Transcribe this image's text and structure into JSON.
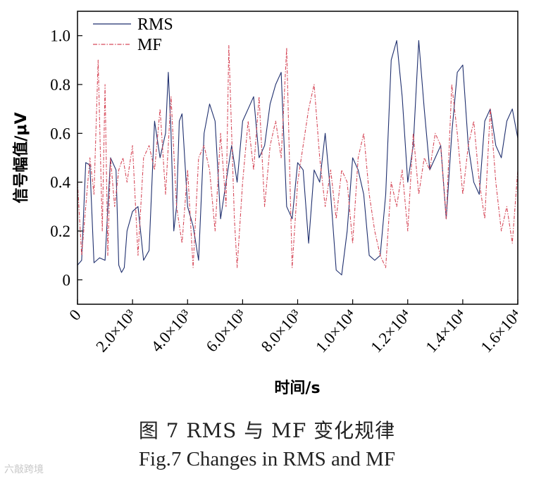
{
  "chart_data": {
    "type": "line",
    "title": "",
    "xlabel": "时间/s",
    "ylabel": "信号幅值/μV",
    "xlim": [
      0,
      16000
    ],
    "ylim": [
      -0.1,
      1.1
    ],
    "x_ticks": [
      0,
      2000,
      4000,
      6000,
      8000,
      10000,
      12000,
      14000,
      16000
    ],
    "x_tick_labels": [
      "0",
      "2.0×10³",
      "4.0×10³",
      "6.0×10³",
      "8.0×10³",
      "1.0×10⁴",
      "1.2×10⁴",
      "1.4×10⁴",
      "1.6×10⁴"
    ],
    "y_ticks": [
      0,
      0.2,
      0.4,
      0.6,
      0.8,
      1.0
    ],
    "y_tick_labels": [
      "0",
      "0.2",
      "0.4",
      "0.6",
      "0.8",
      "1.0"
    ],
    "legend_position": "top-left",
    "series": [
      {
        "name": "RMS",
        "color": "#1f2f6e",
        "style": "solid",
        "x": [
          0,
          150,
          300,
          450,
          600,
          800,
          1000,
          1200,
          1400,
          1500,
          1600,
          1700,
          1800,
          2000,
          2200,
          2400,
          2600,
          2800,
          3000,
          3200,
          3300,
          3400,
          3500,
          3600,
          3700,
          3800,
          4000,
          4200,
          4400,
          4600,
          4800,
          5000,
          5200,
          5400,
          5600,
          5800,
          6000,
          6200,
          6400,
          6600,
          6800,
          7000,
          7200,
          7400,
          7600,
          7800,
          8000,
          8200,
          8400,
          8600,
          8800,
          9000,
          9200,
          9400,
          9600,
          9800,
          10000,
          10200,
          10400,
          10600,
          10800,
          11000,
          11200,
          11400,
          11600,
          11800,
          12000,
          12200,
          12400,
          12600,
          12800,
          13000,
          13200,
          13400,
          13600,
          13800,
          14000,
          14200,
          14400,
          14600,
          14800,
          15000,
          15200,
          15400,
          15600,
          15800,
          16000
        ],
        "y": [
          0.06,
          0.08,
          0.48,
          0.47,
          0.07,
          0.09,
          0.08,
          0.5,
          0.45,
          0.06,
          0.03,
          0.05,
          0.2,
          0.28,
          0.3,
          0.08,
          0.12,
          0.65,
          0.5,
          0.6,
          0.85,
          0.6,
          0.2,
          0.3,
          0.65,
          0.68,
          0.3,
          0.22,
          0.08,
          0.6,
          0.72,
          0.65,
          0.25,
          0.4,
          0.55,
          0.4,
          0.65,
          0.7,
          0.75,
          0.5,
          0.55,
          0.72,
          0.8,
          0.85,
          0.3,
          0.25,
          0.48,
          0.45,
          0.15,
          0.45,
          0.4,
          0.6,
          0.35,
          0.04,
          0.02,
          0.2,
          0.5,
          0.45,
          0.35,
          0.1,
          0.08,
          0.1,
          0.35,
          0.9,
          0.98,
          0.75,
          0.4,
          0.55,
          0.98,
          0.7,
          0.45,
          0.5,
          0.55,
          0.25,
          0.6,
          0.85,
          0.88,
          0.55,
          0.4,
          0.35,
          0.65,
          0.7,
          0.55,
          0.5,
          0.65,
          0.7,
          0.58
        ]
      },
      {
        "name": "MF",
        "color": "#d64a5a",
        "style": "dashdot",
        "x": [
          0,
          150,
          300,
          450,
          600,
          750,
          900,
          1000,
          1100,
          1200,
          1350,
          1500,
          1650,
          1800,
          2000,
          2200,
          2400,
          2600,
          2800,
          3000,
          3200,
          3400,
          3600,
          3800,
          4000,
          4200,
          4400,
          4600,
          4800,
          5000,
          5200,
          5400,
          5500,
          5600,
          5700,
          5800,
          6000,
          6200,
          6400,
          6600,
          6800,
          7000,
          7200,
          7400,
          7600,
          7800,
          8000,
          8200,
          8400,
          8600,
          8800,
          9000,
          9200,
          9400,
          9600,
          9800,
          10000,
          10200,
          10400,
          10600,
          10800,
          11000,
          11200,
          11400,
          11600,
          11800,
          12000,
          12200,
          12400,
          12600,
          12800,
          13000,
          13200,
          13400,
          13600,
          13800,
          14000,
          14200,
          14400,
          14600,
          14800,
          15000,
          15200,
          15400,
          15600,
          15800,
          16000
        ],
        "y": [
          0.4,
          0.1,
          0.3,
          0.5,
          0.35,
          0.9,
          0.2,
          0.8,
          0.1,
          0.5,
          0.3,
          0.45,
          0.5,
          0.4,
          0.55,
          0.1,
          0.5,
          0.55,
          0.45,
          0.7,
          0.35,
          0.75,
          0.3,
          0.15,
          0.45,
          0.05,
          0.5,
          0.55,
          0.45,
          0.2,
          0.6,
          0.3,
          0.96,
          0.6,
          0.25,
          0.05,
          0.4,
          0.65,
          0.45,
          0.75,
          0.3,
          0.55,
          0.65,
          0.5,
          0.95,
          0.05,
          0.4,
          0.55,
          0.7,
          0.8,
          0.5,
          0.3,
          0.45,
          0.25,
          0.45,
          0.4,
          0.15,
          0.5,
          0.6,
          0.35,
          0.2,
          0.1,
          0.05,
          0.4,
          0.3,
          0.45,
          0.2,
          0.6,
          0.35,
          0.5,
          0.45,
          0.6,
          0.55,
          0.25,
          0.8,
          0.6,
          0.35,
          0.55,
          0.65,
          0.4,
          0.25,
          0.7,
          0.4,
          0.2,
          0.3,
          0.15,
          0.45
        ]
      }
    ]
  },
  "caption": {
    "chinese": "图 7    RMS 与 MF 变化规律",
    "english": "Fig.7 Changes in RMS and MF"
  },
  "watermark": "六敲跨境"
}
